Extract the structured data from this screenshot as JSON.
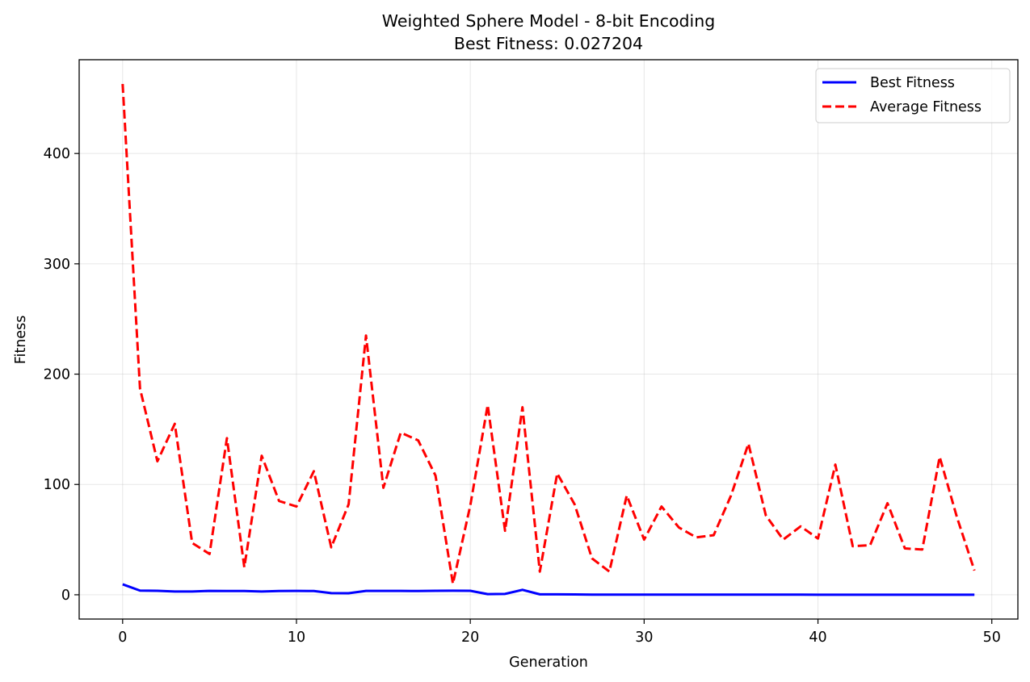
{
  "chart_data": {
    "type": "line",
    "title": "Weighted Sphere Model - 8-bit Encoding",
    "subtitle": "Best Fitness: 0.027204",
    "xlabel": "Generation",
    "ylabel": "Fitness",
    "xlim": [
      -2.5,
      51.5
    ],
    "ylim": [
      -22,
      485
    ],
    "xticks": [
      0,
      10,
      20,
      30,
      40,
      50
    ],
    "yticks": [
      0,
      100,
      200,
      300,
      400
    ],
    "grid": true,
    "legend_position": "top-right",
    "x": [
      0,
      1,
      2,
      3,
      4,
      5,
      6,
      7,
      8,
      9,
      10,
      11,
      12,
      13,
      14,
      15,
      16,
      17,
      18,
      19,
      20,
      21,
      22,
      23,
      24,
      25,
      26,
      27,
      28,
      29,
      30,
      31,
      32,
      33,
      34,
      35,
      36,
      37,
      38,
      39,
      40,
      41,
      42,
      43,
      44,
      45,
      46,
      47,
      48,
      49
    ],
    "series": [
      {
        "name": "Best Fitness",
        "color": "#0000ff",
        "style": "solid",
        "values": [
          9.5,
          3.8,
          3.6,
          3.0,
          3.0,
          3.5,
          3.4,
          3.4,
          3.0,
          3.4,
          3.5,
          3.4,
          1.5,
          1.4,
          3.5,
          3.5,
          3.5,
          3.4,
          3.6,
          3.7,
          3.6,
          0.6,
          0.8,
          4.5,
          0.4,
          0.4,
          0.3,
          0.1,
          0.1,
          0.1,
          0.1,
          0.1,
          0.1,
          0.1,
          0.1,
          0.1,
          0.1,
          0.1,
          0.1,
          0.1,
          0.05,
          0.05,
          0.05,
          0.05,
          0.05,
          0.05,
          0.05,
          0.05,
          0.05,
          0.03
        ]
      },
      {
        "name": "Average Fitness",
        "color": "#ff0000",
        "style": "dashed",
        "values": [
          463,
          187,
          121,
          155,
          47,
          37,
          142,
          25,
          126,
          85,
          80,
          112,
          43,
          82,
          235,
          97,
          147,
          140,
          108,
          10,
          81,
          172,
          58,
          170,
          21,
          110,
          82,
          33,
          21,
          90,
          50,
          80,
          61,
          52,
          54,
          90,
          137,
          72,
          50,
          62,
          51,
          118,
          44,
          45,
          83,
          42,
          41,
          125,
          70,
          22
        ]
      }
    ]
  }
}
